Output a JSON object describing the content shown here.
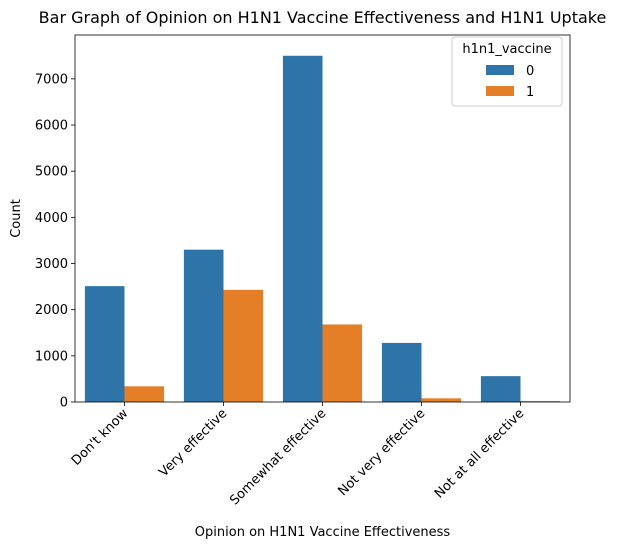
{
  "chart_data": {
    "type": "bar",
    "title": "Bar Graph of Opinion on H1N1 Vaccine Effectiveness and H1N1 Uptake",
    "xlabel": "Opinion on H1N1 Vaccine Effectiveness",
    "ylabel": "Count",
    "categories": [
      "Don't know",
      "Very effective",
      "Somewhat effective",
      "Not very effective",
      "Not at all effective"
    ],
    "series": [
      {
        "name": "0",
        "color": "#2f74a8",
        "values": [
          2510,
          3300,
          7500,
          1280,
          560
        ]
      },
      {
        "name": "1",
        "color": "#e57f27",
        "values": [
          340,
          2430,
          1680,
          80,
          20
        ]
      }
    ],
    "ylim": [
      0,
      7950
    ],
    "yticks": [
      0,
      1000,
      2000,
      3000,
      4000,
      5000,
      6000,
      7000
    ],
    "legend": {
      "title": "h1n1_vaccine",
      "placement": "top-right"
    },
    "grid": false
  }
}
